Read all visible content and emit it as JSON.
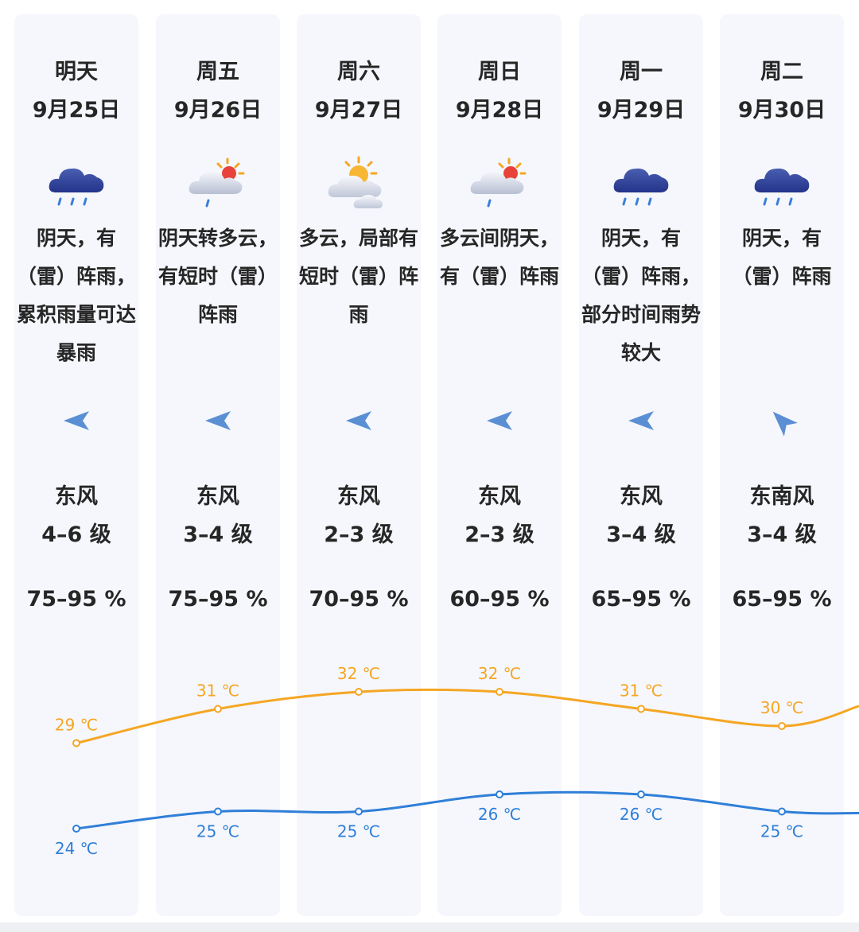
{
  "days": [
    {
      "name": "明天",
      "date": "9月25日",
      "icon": "rain-cloud-icon",
      "desc": "阴天，有（雷）阵雨，累积雨量可达暴雨",
      "wind_icon": "wind-arrow-east-icon",
      "wind_dir": "东风",
      "wind_level": "4–6 级",
      "humidity": "75–95 %",
      "high": "29 ℃",
      "low": "24 ℃",
      "high_c": 29,
      "low_c": 24
    },
    {
      "name": "周五",
      "date": "9月26日",
      "icon": "sun-cloud-rain-icon",
      "desc": "阴天转多云，有短时（雷）阵雨",
      "wind_icon": "wind-arrow-east-icon",
      "wind_dir": "东风",
      "wind_level": "3–4 级",
      "humidity": "75–95 %",
      "high": "31 ℃",
      "low": "25 ℃",
      "high_c": 31,
      "low_c": 25
    },
    {
      "name": "周六",
      "date": "9月27日",
      "icon": "partly-cloudy-icon",
      "desc": "多云，局部有短时（雷）阵雨",
      "wind_icon": "wind-arrow-east-icon",
      "wind_dir": "东风",
      "wind_level": "2–3 级",
      "humidity": "70–95 %",
      "high": "32 ℃",
      "low": "25 ℃",
      "high_c": 32,
      "low_c": 25
    },
    {
      "name": "周日",
      "date": "9月28日",
      "icon": "sun-cloud-rain-icon",
      "desc": "多云间阴天，有（雷）阵雨",
      "wind_icon": "wind-arrow-east-icon",
      "wind_dir": "东风",
      "wind_level": "2–3 级",
      "humidity": "60–95 %",
      "high": "32 ℃",
      "low": "26 ℃",
      "high_c": 32,
      "low_c": 26
    },
    {
      "name": "周一",
      "date": "9月29日",
      "icon": "rain-cloud-icon",
      "desc": "阴天，有（雷）阵雨，部分时间雨势较大",
      "wind_icon": "wind-arrow-east-icon",
      "wind_dir": "东风",
      "wind_level": "3–4 级",
      "humidity": "65–95 %",
      "high": "31 ℃",
      "low": "26 ℃",
      "high_c": 31,
      "low_c": 26
    },
    {
      "name": "周二",
      "date": "9月30日",
      "icon": "rain-cloud-icon",
      "desc": "阴天，有（雷）阵雨",
      "wind_icon": "wind-arrow-southeast-icon",
      "wind_dir": "东南风",
      "wind_level": "3–4 级",
      "humidity": "65–95 %",
      "high": "30 ℃",
      "low": "25 ℃",
      "high_c": 30,
      "low_c": 25
    }
  ],
  "colors": {
    "high_line": "#f5a623",
    "low_line": "#2f7fd8",
    "column_bg": "#f5f7fc",
    "wind_arrow": "#5a8fd4"
  }
}
